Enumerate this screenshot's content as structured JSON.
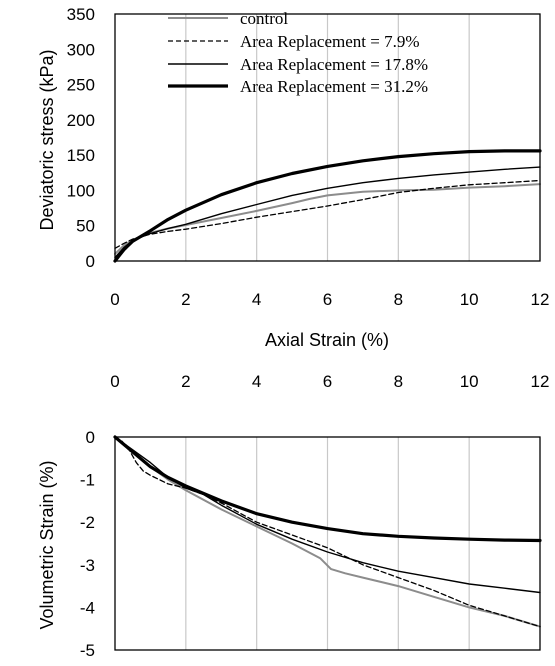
{
  "chart_data": [
    {
      "type": "line",
      "title": "",
      "xlabel": "Axial Strain (%)",
      "ylabel": "Deviatoric stress (kPa)",
      "xlim": [
        0,
        12
      ],
      "ylim": [
        0,
        350
      ],
      "xticks": [
        "0",
        "2",
        "4",
        "6",
        "8",
        "10",
        "12"
      ],
      "yticks": [
        "0",
        "50",
        "100",
        "150",
        "200",
        "250",
        "300",
        "350"
      ],
      "grid": "vertical",
      "legend_position": "top-left",
      "series": [
        {
          "name": "control",
          "color": "#8c8c8c",
          "style": "solid",
          "width": 2,
          "x": [
            0,
            0.25,
            0.5,
            1,
            1.5,
            2,
            3,
            4,
            5,
            5.5,
            6,
            7,
            8,
            9,
            10,
            11,
            12
          ],
          "y": [
            10,
            22,
            30,
            40,
            46,
            51,
            61,
            71,
            82,
            88,
            93,
            98,
            100,
            101,
            104,
            106,
            109
          ]
        },
        {
          "name": "Area Replacement = 7.9%",
          "color": "#000000",
          "style": "dashed",
          "width": 1.3,
          "x": [
            0,
            0.25,
            0.5,
            1,
            1.5,
            2,
            3,
            4,
            5,
            6,
            7,
            8,
            9,
            10,
            11,
            12
          ],
          "y": [
            18,
            25,
            31,
            38,
            42,
            45,
            53,
            62,
            70,
            78,
            87,
            97,
            103,
            108,
            111,
            114
          ]
        },
        {
          "name": "Area Replacement = 17.8%",
          "color": "#000000",
          "style": "solid",
          "width": 1.4,
          "x": [
            0,
            0.25,
            0.5,
            1,
            1.5,
            2,
            3,
            4,
            5,
            6,
            7,
            8,
            9,
            10,
            11,
            12
          ],
          "y": [
            5,
            19,
            29,
            39,
            46,
            52,
            67,
            80,
            93,
            103,
            111,
            117,
            122,
            126,
            130,
            133
          ]
        },
        {
          "name": "Area Replacement = 31.2%",
          "color": "#000000",
          "style": "solid",
          "width": 3.2,
          "x": [
            0,
            0.25,
            0.5,
            1,
            1.5,
            2,
            3,
            4,
            5,
            6,
            7,
            8,
            9,
            10,
            11,
            12
          ],
          "y": [
            0,
            16,
            28,
            43,
            59,
            72,
            94,
            111,
            124,
            134,
            142,
            148,
            152,
            155,
            156,
            156
          ]
        }
      ]
    },
    {
      "type": "line",
      "title": "",
      "xlabel": "",
      "ylabel": "Volumetric Strain (%)",
      "xlim": [
        0,
        12
      ],
      "ylim": [
        -5,
        0
      ],
      "xticks": [
        "0",
        "2",
        "4",
        "6",
        "8",
        "10",
        "12"
      ],
      "yticks": [
        "0",
        "-1",
        "-2",
        "-3",
        "-4",
        "-5"
      ],
      "grid": "vertical",
      "series": [
        {
          "name": "control",
          "color": "#8c8c8c",
          "style": "solid",
          "width": 2,
          "x": [
            0,
            0.5,
            1,
            1.5,
            2,
            3,
            4,
            5,
            5.8,
            6.1,
            6.5,
            7,
            8,
            9,
            10,
            11,
            12
          ],
          "y": [
            0,
            -0.35,
            -0.7,
            -1.0,
            -1.25,
            -1.7,
            -2.1,
            -2.5,
            -2.85,
            -3.1,
            -3.2,
            -3.3,
            -3.5,
            -3.75,
            -4.0,
            -4.2,
            -4.45
          ]
        },
        {
          "name": "Area Replacement = 7.9%",
          "color": "#000000",
          "style": "dashed",
          "width": 1.3,
          "x": [
            0,
            0.2,
            0.4,
            0.6,
            0.8,
            1,
            1.5,
            2,
            2.5,
            3,
            4,
            5,
            6,
            7,
            8,
            9,
            10,
            11,
            12
          ],
          "y": [
            0,
            -0.1,
            -0.3,
            -0.6,
            -0.8,
            -0.9,
            -1.1,
            -1.2,
            -1.35,
            -1.55,
            -2.0,
            -2.3,
            -2.6,
            -3.0,
            -3.3,
            -3.6,
            -3.95,
            -4.2,
            -4.45
          ]
        },
        {
          "name": "Area Replacement = 17.8%",
          "color": "#000000",
          "style": "solid",
          "width": 1.4,
          "x": [
            0,
            0.5,
            1,
            1.5,
            2,
            2.5,
            3,
            4,
            5,
            6,
            7,
            8,
            9,
            10,
            11,
            12
          ],
          "y": [
            0,
            -0.3,
            -0.6,
            -0.95,
            -1.2,
            -1.35,
            -1.6,
            -2.05,
            -2.4,
            -2.7,
            -2.95,
            -3.15,
            -3.3,
            -3.45,
            -3.55,
            -3.65
          ]
        },
        {
          "name": "Area Replacement = 31.2%",
          "color": "#000000",
          "style": "solid",
          "width": 3.2,
          "x": [
            0,
            0.5,
            1,
            1.5,
            2,
            3,
            4,
            5,
            6,
            7,
            8,
            9,
            10,
            11,
            12
          ],
          "y": [
            0,
            -0.35,
            -0.7,
            -0.95,
            -1.15,
            -1.5,
            -1.8,
            -2.0,
            -2.15,
            -2.27,
            -2.33,
            -2.37,
            -2.4,
            -2.42,
            -2.43
          ]
        }
      ]
    }
  ]
}
